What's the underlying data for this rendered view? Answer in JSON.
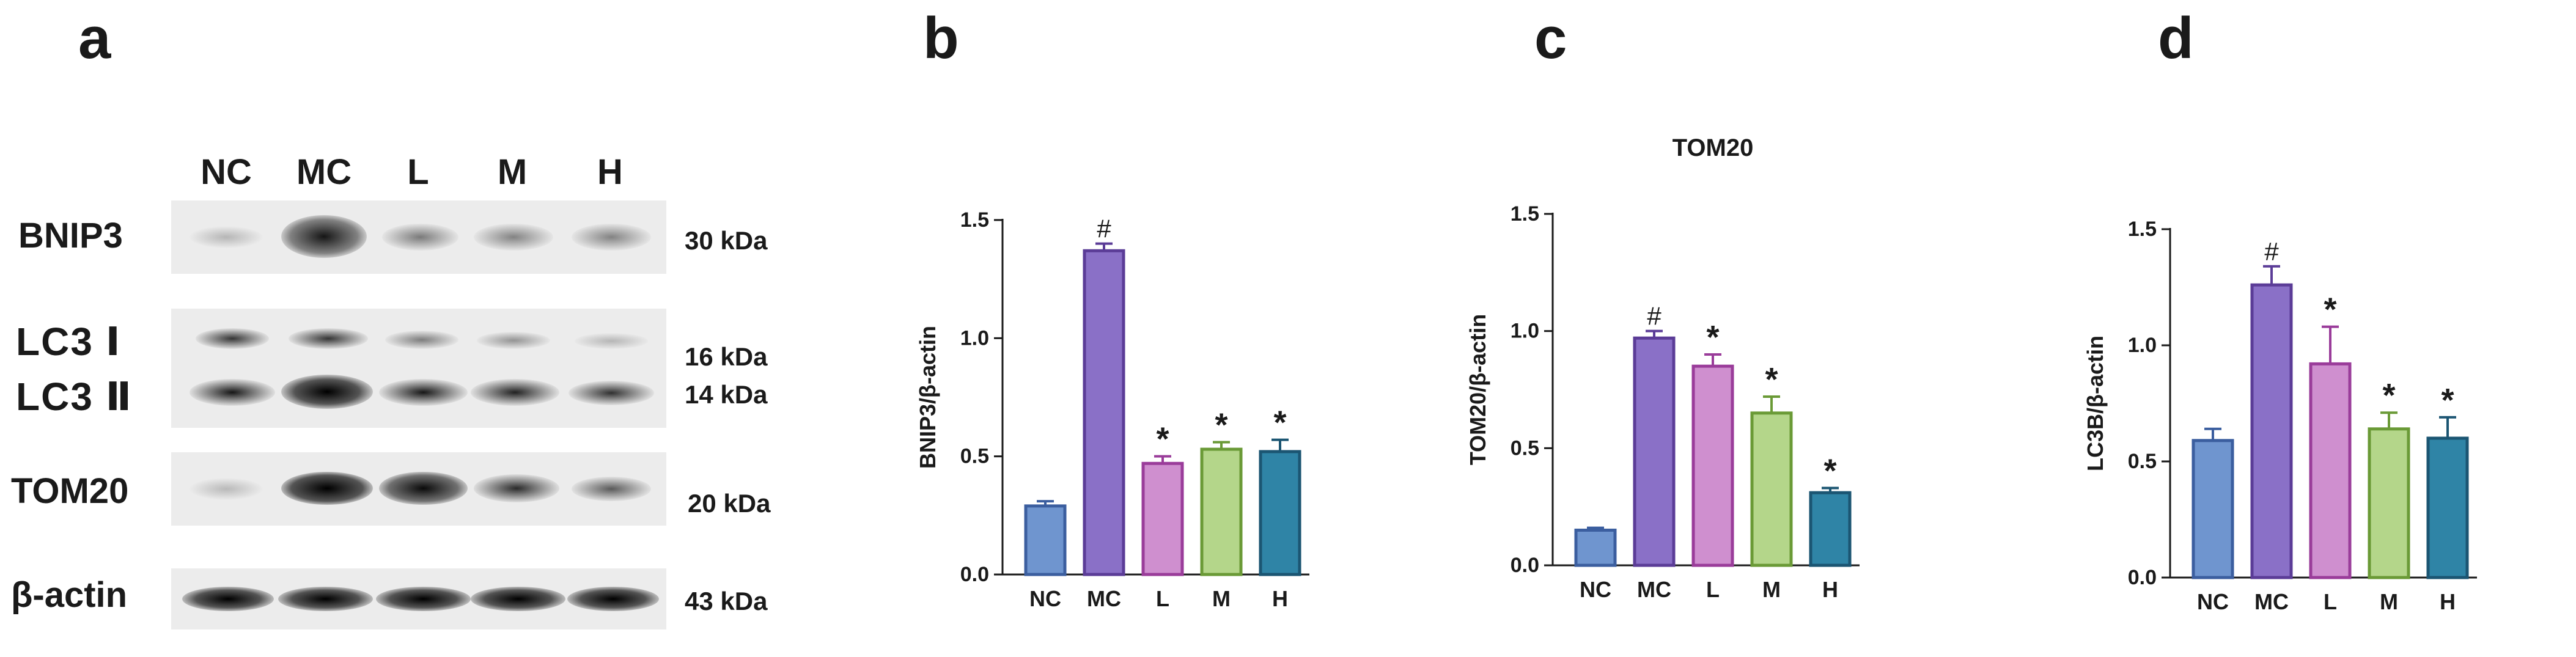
{
  "panels": {
    "a": "a",
    "b": "b",
    "c": "c",
    "d": "d"
  },
  "blot": {
    "lanes": [
      "NC",
      "MC",
      "L",
      "M",
      "H"
    ],
    "rows": [
      {
        "label": "BNIP3",
        "kda": [
          "30 kDa"
        ]
      },
      {
        "label": "LC3 Ⅰ",
        "label2": "LC3 Ⅱ",
        "kda": [
          "16 kDa",
          "14 kDa"
        ]
      },
      {
        "label": "TOM20",
        "kda": [
          "20 kDa"
        ]
      },
      {
        "label": "β-actin",
        "kda": [
          "43 kDa"
        ]
      }
    ]
  },
  "chart_data": [
    {
      "type": "bar",
      "title": "",
      "ylabel": "BNIP3/β-actin",
      "categories": [
        "NC",
        "MC",
        "L",
        "M",
        "H"
      ],
      "values": [
        0.29,
        1.37,
        0.47,
        0.53,
        0.52
      ],
      "errors": [
        0.02,
        0.03,
        0.03,
        0.03,
        0.05
      ],
      "markers": [
        "",
        "#",
        "*",
        "*",
        "*"
      ],
      "ylim": [
        0,
        1.5
      ],
      "yticks": [
        "0.0",
        "0.5",
        "1.0",
        "1.5"
      ],
      "colors": [
        "#6f95cf",
        "#8a70c7",
        "#cf8fcf",
        "#b4d68a",
        "#2f84a6"
      ],
      "edge_colors": [
        "#3b5e9f",
        "#5b3c97",
        "#9a3c9a",
        "#6a9a36",
        "#1b5572"
      ]
    },
    {
      "type": "bar",
      "title": "TOM20",
      "ylabel": "TOM20/β-actin",
      "categories": [
        "NC",
        "MC",
        "L",
        "M",
        "H"
      ],
      "values": [
        0.15,
        0.97,
        0.85,
        0.65,
        0.31
      ],
      "errors": [
        0.01,
        0.03,
        0.05,
        0.07,
        0.02
      ],
      "markers": [
        "",
        "#",
        "*",
        "*",
        "*"
      ],
      "ylim": [
        0,
        1.5
      ],
      "yticks": [
        "0.0",
        "0.5",
        "1.0",
        "1.5"
      ],
      "colors": [
        "#6f95cf",
        "#8a70c7",
        "#cf8fcf",
        "#b4d68a",
        "#2f84a6"
      ],
      "edge_colors": [
        "#3b5e9f",
        "#5b3c97",
        "#9a3c9a",
        "#6a9a36",
        "#1b5572"
      ]
    },
    {
      "type": "bar",
      "title": "",
      "ylabel": "LC3B/β-actin",
      "categories": [
        "NC",
        "MC",
        "L",
        "M",
        "H"
      ],
      "values": [
        0.59,
        1.26,
        0.92,
        0.64,
        0.6
      ],
      "errors": [
        0.05,
        0.08,
        0.16,
        0.07,
        0.09
      ],
      "markers": [
        "",
        "#",
        "*",
        "*",
        "*"
      ],
      "ylim": [
        0,
        1.5
      ],
      "yticks": [
        "0.0",
        "0.5",
        "1.0",
        "1.5"
      ],
      "colors": [
        "#6f95cf",
        "#8a70c7",
        "#cf8fcf",
        "#b4d68a",
        "#2f84a6"
      ],
      "edge_colors": [
        "#3b5e9f",
        "#5b3c97",
        "#9a3c9a",
        "#6a9a36",
        "#1b5572"
      ]
    }
  ]
}
